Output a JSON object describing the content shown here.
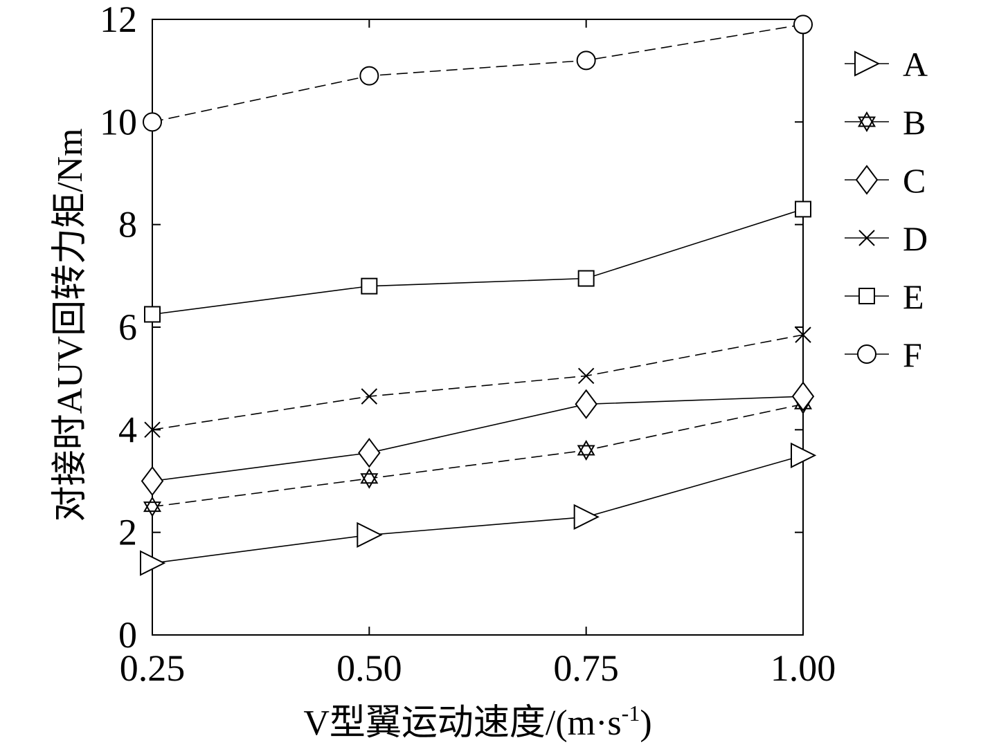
{
  "chart_data": {
    "type": "line",
    "title": "",
    "xlabel": "V型翼运动速度/(m·s",
    "xlabel_sup": "-1",
    "xlabel_close": ")",
    "ylabel": "对接时AUV回转力矩/Nm",
    "x": [
      0.25,
      0.5,
      0.75,
      1.0
    ],
    "x_tick_labels": [
      "0.25",
      "0.50",
      "0.75",
      "1.00"
    ],
    "y_ticks": [
      0,
      2,
      4,
      6,
      8,
      10,
      12
    ],
    "y_tick_labels": [
      "0",
      "2",
      "4",
      "6",
      "8",
      "10",
      "12"
    ],
    "xlim": [
      0.25,
      1.0
    ],
    "ylim": [
      0,
      12
    ],
    "grid": false,
    "legend_position": "right",
    "series": [
      {
        "name": "A",
        "marker": "triangle-right",
        "dash": "solid",
        "values": [
          1.4,
          1.95,
          2.3,
          3.5
        ]
      },
      {
        "name": "B",
        "marker": "hexagram",
        "dash": "dashed",
        "values": [
          2.5,
          3.05,
          3.6,
          4.5
        ]
      },
      {
        "name": "C",
        "marker": "diamond",
        "dash": "solid",
        "values": [
          3.0,
          3.55,
          4.5,
          4.65
        ]
      },
      {
        "name": "D",
        "marker": "x",
        "dash": "dashed",
        "values": [
          4.0,
          4.65,
          5.05,
          5.85
        ]
      },
      {
        "name": "E",
        "marker": "square",
        "dash": "solid",
        "values": [
          6.25,
          6.8,
          6.95,
          8.3
        ]
      },
      {
        "name": "F",
        "marker": "circle",
        "dash": "dashed",
        "values": [
          10.0,
          10.9,
          11.2,
          11.9
        ]
      }
    ]
  }
}
